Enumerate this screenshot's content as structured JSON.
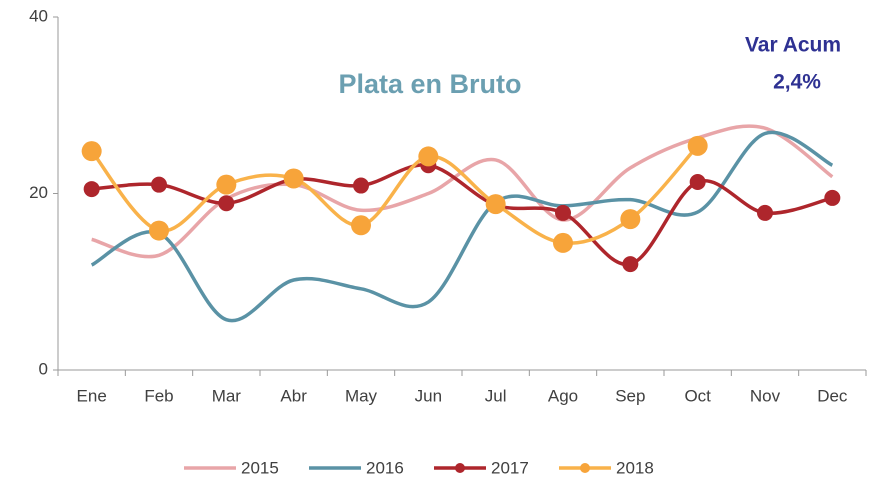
{
  "chart_data": {
    "type": "line",
    "title": "Plata en Bruto",
    "annotations": [
      "Var Acum",
      "2,4%"
    ],
    "categories": [
      "Ene",
      "Feb",
      "Mar",
      "Abr",
      "May",
      "Jun",
      "Jul",
      "Ago",
      "Sep",
      "Oct",
      "Nov",
      "Dec"
    ],
    "series": [
      {
        "name": "2015",
        "color": "#e8a5a8",
        "markers": false,
        "values": [
          14.8,
          13,
          19.4,
          21,
          18.1,
          20,
          23.8,
          17,
          22.9,
          26.3,
          27.4,
          21.9
        ]
      },
      {
        "name": "2016",
        "color": "#5a92a5",
        "markers": false,
        "values": [
          11.9,
          15.5,
          5.7,
          10.2,
          9.2,
          7.7,
          19,
          18.6,
          19.3,
          17.9,
          26.8,
          23.2
        ]
      },
      {
        "name": "2017",
        "color": "#ae262c",
        "markers": true,
        "values": [
          20.5,
          21,
          18.9,
          21.6,
          20.9,
          23.2,
          18.7,
          17.8,
          12,
          21.3,
          17.8,
          19.5
        ]
      },
      {
        "name": "2018",
        "color": "#f9b24a",
        "markers": true,
        "values": [
          24.8,
          15.8,
          21,
          21.7,
          16.4,
          24.2,
          18.8,
          14.4,
          17.1,
          25.4,
          null,
          null
        ]
      }
    ],
    "ylim": [
      0,
      40
    ],
    "yticks": [
      0,
      20,
      40
    ],
    "grid": false,
    "legend": "bottom"
  }
}
